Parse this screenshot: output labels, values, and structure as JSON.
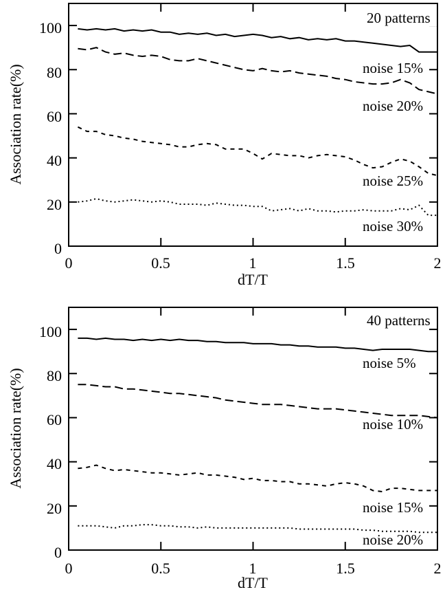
{
  "chart_data": [
    {
      "type": "line",
      "title": "20 patterns",
      "xlabel": "dT/T",
      "ylabel": "Association rate(%)",
      "xlim": [
        0,
        2
      ],
      "ylim": [
        0,
        110
      ],
      "xticks": [
        "0",
        "0.5",
        "1",
        "1.5",
        "2"
      ],
      "yticks": [
        "0",
        "20",
        "40",
        "60",
        "80",
        "100"
      ],
      "x": [
        0.05,
        0.1,
        0.15,
        0.2,
        0.25,
        0.3,
        0.35,
        0.4,
        0.45,
        0.5,
        0.55,
        0.6,
        0.65,
        0.7,
        0.75,
        0.8,
        0.85,
        0.9,
        0.95,
        1.0,
        1.05,
        1.1,
        1.15,
        1.2,
        1.25,
        1.3,
        1.35,
        1.4,
        1.45,
        1.5,
        1.55,
        1.6,
        1.65,
        1.7,
        1.75,
        1.8,
        1.85,
        1.9,
        1.95,
        2.0
      ],
      "series": [
        {
          "name": "noise 15%",
          "style": "solid",
          "values": [
            98.5,
            98,
            98.5,
            98,
            98.5,
            97.5,
            98,
            97.5,
            98,
            97,
            97,
            96,
            96.5,
            96,
            96.5,
            95.5,
            96,
            95,
            95.5,
            96,
            95.5,
            94.5,
            95,
            94,
            94.5,
            93.5,
            94,
            93.5,
            94,
            93,
            93,
            92.5,
            92,
            91.5,
            91,
            90.5,
            91,
            88,
            88,
            88
          ]
        },
        {
          "name": "noise 20%",
          "style": "dashed",
          "values": [
            89.5,
            89,
            90,
            88,
            87,
            87.5,
            86.5,
            86,
            86.5,
            86,
            84.5,
            84,
            84,
            85,
            84,
            83,
            82,
            81,
            80,
            79.5,
            80.5,
            79.5,
            79,
            79.5,
            78.5,
            78,
            77.5,
            77,
            76,
            75.5,
            74.5,
            74,
            73.5,
            73.5,
            74,
            75.5,
            74,
            71,
            70,
            69
          ]
        },
        {
          "name": "noise 25%",
          "style": "short-dashed",
          "values": [
            54,
            52,
            52,
            50.5,
            50,
            49,
            48.5,
            47.5,
            47,
            46.5,
            46,
            45,
            45,
            46,
            46.5,
            46,
            44,
            44,
            44,
            42,
            39.5,
            42,
            41.5,
            41,
            41,
            40,
            41,
            41.5,
            41,
            40.5,
            39,
            37,
            35.5,
            36,
            38,
            39.5,
            38.5,
            36,
            33,
            32
          ]
        },
        {
          "name": "noise 30%",
          "style": "dotted",
          "values": [
            20,
            20.5,
            21.5,
            20.5,
            20,
            20.5,
            21,
            20.5,
            20,
            20.5,
            20,
            19,
            19,
            19,
            18.5,
            19.5,
            19,
            18.5,
            18.5,
            18,
            18,
            16,
            16.5,
            17,
            16,
            17,
            16,
            16,
            15.5,
            16,
            16,
            16.5,
            16,
            16,
            16,
            17,
            16.5,
            18.5,
            14,
            14
          ]
        }
      ]
    },
    {
      "type": "line",
      "title": "40 patterns",
      "xlabel": "dT/T",
      "ylabel": "Association rate(%)",
      "xlim": [
        0,
        2
      ],
      "ylim": [
        0,
        110
      ],
      "xticks": [
        "0",
        "0.5",
        "1",
        "1.5",
        "2"
      ],
      "yticks": [
        "0",
        "20",
        "40",
        "60",
        "80",
        "100"
      ],
      "x": [
        0.05,
        0.1,
        0.15,
        0.2,
        0.25,
        0.3,
        0.35,
        0.4,
        0.45,
        0.5,
        0.55,
        0.6,
        0.65,
        0.7,
        0.75,
        0.8,
        0.85,
        0.9,
        0.95,
        1.0,
        1.05,
        1.1,
        1.15,
        1.2,
        1.25,
        1.3,
        1.35,
        1.4,
        1.45,
        1.5,
        1.55,
        1.6,
        1.65,
        1.7,
        1.75,
        1.8,
        1.85,
        1.9,
        1.95,
        2.0
      ],
      "series": [
        {
          "name": "noise  5%",
          "style": "solid",
          "values": [
            96,
            96,
            95.5,
            96,
            95.5,
            95.5,
            95,
            95.5,
            95,
            95.5,
            95,
            95.5,
            95,
            95,
            94.5,
            94.5,
            94,
            94,
            94,
            93.5,
            93.5,
            93.5,
            93,
            93,
            92.5,
            92.5,
            92,
            92,
            92,
            91.5,
            91.5,
            91,
            90.5,
            91,
            91,
            91,
            91,
            90.5,
            90,
            90
          ]
        },
        {
          "name": "noise 10%",
          "style": "dashed",
          "values": [
            75,
            75,
            74.5,
            74,
            74,
            73,
            73,
            72.5,
            72,
            71.5,
            71,
            71,
            70.5,
            70,
            69.5,
            69,
            68,
            67.5,
            67,
            66.5,
            66,
            66,
            66,
            65.5,
            65,
            64.5,
            64,
            64,
            64,
            63.5,
            63,
            62.5,
            62,
            61.5,
            61,
            61,
            61,
            61,
            60.5,
            60
          ]
        },
        {
          "name": "noise 15%",
          "style": "short-dashed",
          "values": [
            37,
            37.5,
            38.5,
            37,
            36,
            36.5,
            36,
            35.5,
            35,
            35,
            34.5,
            34,
            34.5,
            35,
            34,
            34,
            33.5,
            33,
            32,
            32.5,
            31.5,
            31.5,
            31,
            31,
            30,
            30,
            29.5,
            29,
            30,
            30.5,
            30,
            29,
            27,
            26.5,
            28,
            28,
            27.5,
            27,
            27,
            27
          ]
        },
        {
          "name": "noise 20%",
          "style": "dotted",
          "values": [
            11,
            11,
            11,
            10.5,
            10,
            11,
            11,
            11.5,
            11.5,
            11,
            11,
            10.5,
            10.5,
            10,
            10.5,
            10,
            10,
            10,
            10,
            10,
            10,
            10,
            10,
            10,
            9.5,
            9.5,
            9.5,
            9.5,
            9.5,
            9.5,
            9.5,
            9,
            9,
            8.5,
            8.5,
            8.5,
            8.5,
            8,
            8,
            8
          ]
        }
      ]
    }
  ]
}
